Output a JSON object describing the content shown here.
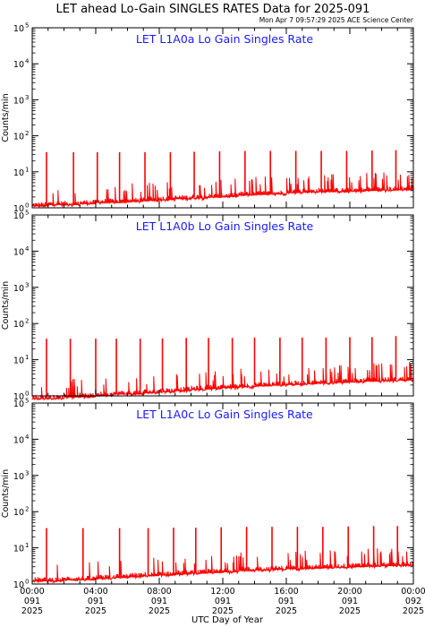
{
  "figure": {
    "title": "LET ahead Lo-Gain SINGLES RATES Data for 2025-091",
    "timestamp": "Mon Apr  7 09:57:29 2025 ACE Science Center",
    "xlabel": "UTC Day of Year"
  },
  "colors": {
    "data": "#ff0000",
    "panel_title": "#1a1aff",
    "axes": "#000000"
  },
  "x_ticks": [
    {
      "time": "00:00",
      "doy": "091",
      "year": "2025"
    },
    {
      "time": "04:00",
      "doy": "091",
      "year": "2025"
    },
    {
      "time": "08:00",
      "doy": "091",
      "year": "2025"
    },
    {
      "time": "12:00",
      "doy": "091",
      "year": "2025"
    },
    {
      "time": "16:00",
      "doy": "091",
      "year": "2025"
    },
    {
      "time": "20:00",
      "doy": "091",
      "year": "2025"
    },
    {
      "time": "00:00",
      "doy": "092",
      "year": "2025"
    }
  ],
  "y_ticks": [
    {
      "base": "10",
      "exp": "0"
    },
    {
      "base": "10",
      "exp": "1"
    },
    {
      "base": "10",
      "exp": "2"
    },
    {
      "base": "10",
      "exp": "3"
    },
    {
      "base": "10",
      "exp": "4"
    },
    {
      "base": "10",
      "exp": "5"
    }
  ],
  "chart_data": [
    {
      "type": "line",
      "title": "LET L1A0a Lo Gain Singles Rate",
      "ylabel": "Counts/min",
      "xlabel": "UTC Day of Year",
      "x_unit": "hours of 2025-091 (UTC)",
      "xlim": [
        0,
        24
      ],
      "ylim": [
        1,
        100000
      ],
      "y_scale": "log",
      "grid": false,
      "spike_hours": [
        0.9,
        2.6,
        4.1,
        5.5,
        7.1,
        8.7,
        10.2,
        11.8,
        13.4,
        15.0,
        16.6,
        18.2,
        19.8,
        21.4,
        22.9
      ],
      "spike_values": [
        35,
        35,
        35,
        35,
        35,
        35,
        36,
        37,
        38,
        38,
        38,
        38,
        38,
        39,
        40
      ],
      "baseline_values_by_hour": [
        1.2,
        1.3,
        1.3,
        1.4,
        1.5,
        1.5,
        1.6,
        1.7,
        1.8,
        1.9,
        2.0,
        2.1,
        2.2,
        2.4,
        2.5,
        2.6,
        2.8,
        2.9,
        3.0,
        3.0,
        3.1,
        3.2,
        3.3,
        3.4
      ]
    },
    {
      "type": "line",
      "title": "LET L1A0b Lo Gain Singles Rate",
      "ylabel": "Counts/min",
      "xlabel": "UTC Day of Year",
      "x_unit": "hours of 2025-091 (UTC)",
      "xlim": [
        0,
        24
      ],
      "ylim": [
        1,
        100000
      ],
      "y_scale": "log",
      "grid": false,
      "spike_hours": [
        0.9,
        2.4,
        4.0,
        5.3,
        6.8,
        8.2,
        9.7,
        11.1,
        12.6,
        14.0,
        15.6,
        17.0,
        18.5,
        20.0,
        21.4,
        22.9
      ],
      "spike_values": [
        38,
        38,
        38,
        38,
        38,
        39,
        40,
        40,
        40,
        41,
        41,
        41,
        41,
        42,
        42,
        45
      ],
      "baseline_values_by_hour": [
        0.9,
        0.9,
        1.0,
        1.0,
        1.1,
        1.2,
        1.2,
        1.3,
        1.4,
        1.5,
        1.6,
        1.7,
        1.8,
        1.9,
        2.0,
        2.1,
        2.2,
        2.3,
        2.4,
        2.5,
        2.6,
        2.7,
        2.8,
        2.9
      ]
    },
    {
      "type": "line",
      "title": "LET L1A0c Lo Gain Singles Rate",
      "ylabel": "Counts/min",
      "xlabel": "UTC Day of Year",
      "x_unit": "hours of 2025-091 (UTC)",
      "xlim": [
        0,
        24
      ],
      "ylim": [
        1,
        100000
      ],
      "y_scale": "log",
      "grid": false,
      "spike_hours": [
        0.9,
        3.2,
        5.5,
        7.3,
        8.9,
        10.3,
        11.9,
        13.5,
        15.1,
        16.7,
        18.3,
        19.9,
        21.5,
        23.0
      ],
      "spike_values": [
        35,
        35,
        35,
        35,
        36,
        36,
        37,
        38,
        38,
        38,
        38,
        39,
        40,
        40
      ],
      "baseline_values_by_hour": [
        1.3,
        1.3,
        1.4,
        1.4,
        1.5,
        1.6,
        1.7,
        1.8,
        1.9,
        2.0,
        2.1,
        2.2,
        2.3,
        2.5,
        2.6,
        2.7,
        2.8,
        2.9,
        3.0,
        3.1,
        3.2,
        3.3,
        3.4,
        3.5
      ]
    }
  ]
}
